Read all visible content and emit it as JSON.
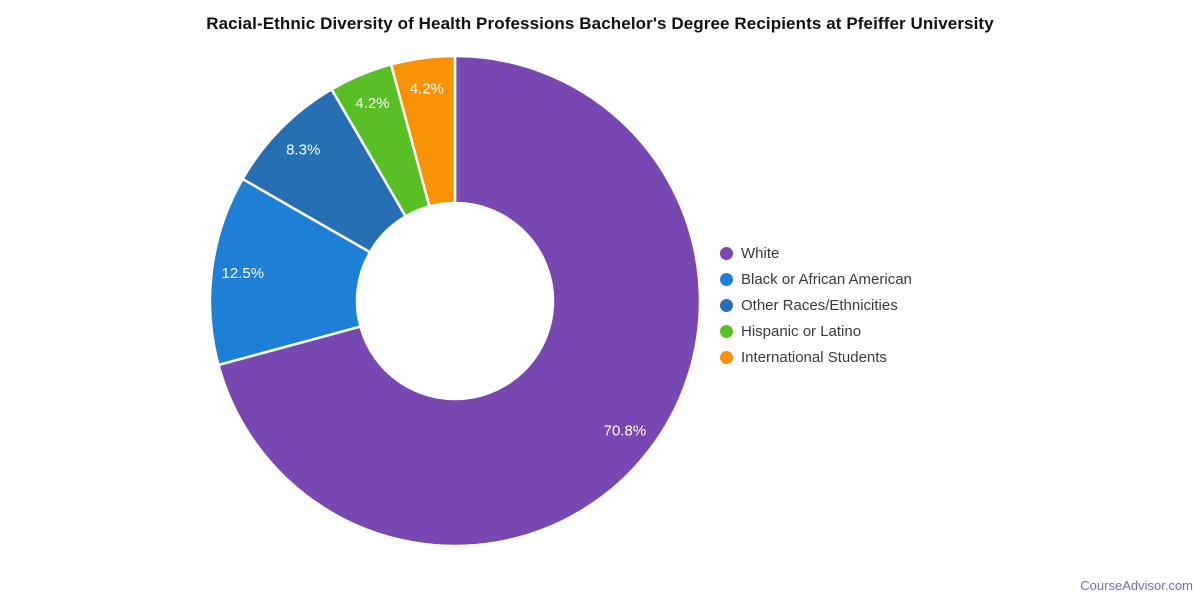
{
  "title": "Racial-Ethnic Diversity of Health Professions Bachelor's Degree Recipients at Pfeiffer University",
  "footer": {
    "text": "CourseAdvisor.com",
    "color": "#7a6bb5"
  },
  "chart_data": {
    "type": "pie",
    "donut": true,
    "inner_radius_ratio": 0.4,
    "start_angle_deg": 0,
    "direction": "clockwise",
    "title": "Racial-Ethnic Diversity of Health Professions Bachelor's Degree Recipients at Pfeiffer University",
    "units": "%",
    "background": "#ffffff",
    "legend_position": "right",
    "categories": [
      "White",
      "Black or African American",
      "Other Races/Ethnicities",
      "Hispanic or Latino",
      "International Students"
    ],
    "values": [
      70.8,
      12.5,
      8.3,
      4.2,
      4.2
    ],
    "labels": [
      "70.8%",
      "12.5%",
      "8.3%",
      "4.2%",
      "4.2%"
    ],
    "colors": [
      "#7747b2",
      "#1e7fd6",
      "#266fb2",
      "#58c024",
      "#f79303"
    ],
    "label_color": "#ffffff",
    "slice_border_color": "#ffffff"
  }
}
